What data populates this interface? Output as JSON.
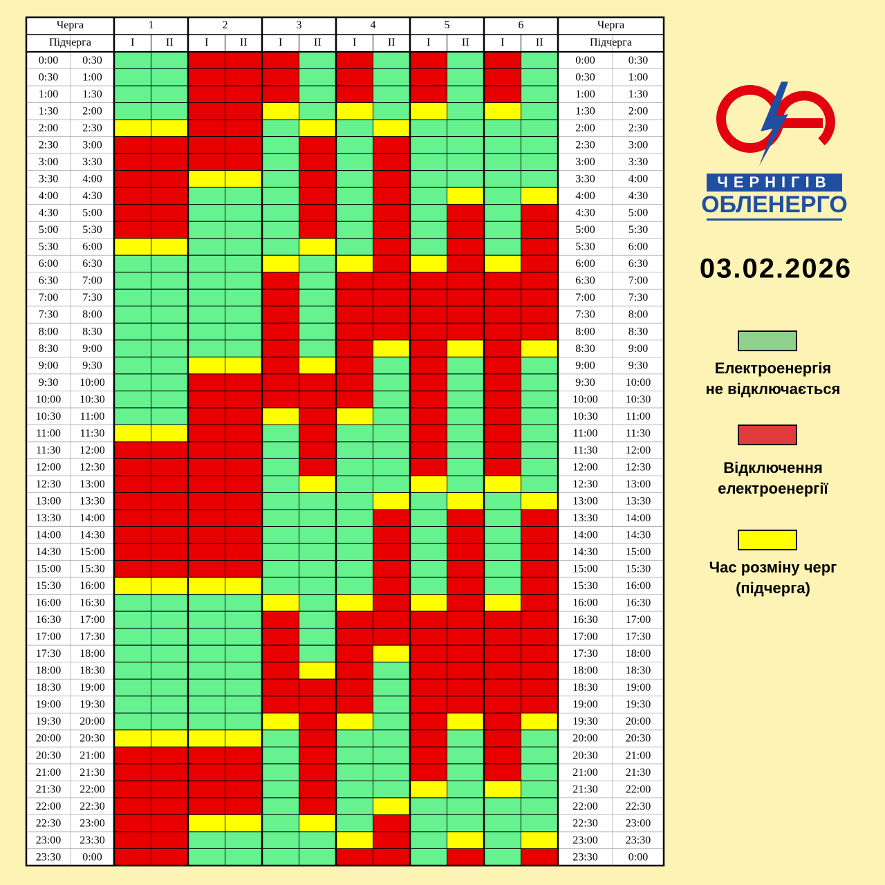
{
  "header": {
    "queue_label": "Черга",
    "subqueue_label": "Підчерга",
    "groups": [
      "1",
      "2",
      "3",
      "4",
      "5",
      "6"
    ],
    "subgroups": [
      "I",
      "II"
    ]
  },
  "states": {
    "G": "#66f28f",
    "R": "#e80000",
    "Y": "#ffff00"
  },
  "rows": [
    {
      "from": "0:00",
      "to": "0:30",
      "cells": "GGRRRGRGRGRG"
    },
    {
      "from": "0:30",
      "to": "1:00",
      "cells": "GGRRRGRGRGRG"
    },
    {
      "from": "1:00",
      "to": "1:30",
      "cells": "GGRRRGRGRGRG"
    },
    {
      "from": "1:30",
      "to": "2:00",
      "cells": "GGRRYGYGYGYG"
    },
    {
      "from": "2:00",
      "to": "2:30",
      "cells": "YYRRGYGYGGGG"
    },
    {
      "from": "2:30",
      "to": "3:00",
      "cells": "RRRRGRGRGGGG"
    },
    {
      "from": "3:00",
      "to": "3:30",
      "cells": "RRRRGRGRGGGG"
    },
    {
      "from": "3:30",
      "to": "4:00",
      "cells": "RRYYGRGRGGGG"
    },
    {
      "from": "4:00",
      "to": "4:30",
      "cells": "RRGGGRGRGYGY"
    },
    {
      "from": "4:30",
      "to": "5:00",
      "cells": "RRGGGRGRGRGR"
    },
    {
      "from": "5:00",
      "to": "5:30",
      "cells": "RRGGGRGRGRGR"
    },
    {
      "from": "5:30",
      "to": "6:00",
      "cells": "YYGGGYGRGRGR"
    },
    {
      "from": "6:00",
      "to": "6:30",
      "cells": "GGGGYGYRYRYR"
    },
    {
      "from": "6:30",
      "to": "7:00",
      "cells": "GGGGRGRRRRRR"
    },
    {
      "from": "7:00",
      "to": "7:30",
      "cells": "GGGGRGRRRRRR"
    },
    {
      "from": "7:30",
      "to": "8:00",
      "cells": "GGGGRGRRRRRR"
    },
    {
      "from": "8:00",
      "to": "8:30",
      "cells": "GGGGRGRRRRRR"
    },
    {
      "from": "8:30",
      "to": "9:00",
      "cells": "GGGGRGRYRYRY"
    },
    {
      "from": "9:00",
      "to": "9:30",
      "cells": "GGYYRYRGRGRG"
    },
    {
      "from": "9:30",
      "to": "10:00",
      "cells": "GGRRRRRGRGRG"
    },
    {
      "from": "10:00",
      "to": "10:30",
      "cells": "GGRRRRRGRGRG"
    },
    {
      "from": "10:30",
      "to": "11:00",
      "cells": "GGRRYRYGRGRG"
    },
    {
      "from": "11:00",
      "to": "11:30",
      "cells": "YYRRGRGGRGRG"
    },
    {
      "from": "11:30",
      "to": "12:00",
      "cells": "RRRRGRGGRGRG"
    },
    {
      "from": "12:00",
      "to": "12:30",
      "cells": "RRRRGRGGRGRG"
    },
    {
      "from": "12:30",
      "to": "13:00",
      "cells": "RRRRGYGGYGYG"
    },
    {
      "from": "13:00",
      "to": "13:30",
      "cells": "RRRRGGGYGYGY"
    },
    {
      "from": "13:30",
      "to": "14:00",
      "cells": "RRRRGGGRGRGR"
    },
    {
      "from": "14:00",
      "to": "14:30",
      "cells": "RRRRGGGRGRGR"
    },
    {
      "from": "14:30",
      "to": "15:00",
      "cells": "RRRRGGGRGRGR"
    },
    {
      "from": "15:00",
      "to": "15:30",
      "cells": "RRRRGGGRGRGR"
    },
    {
      "from": "15:30",
      "to": "16:00",
      "cells": "YYYYGGGRGRGR"
    },
    {
      "from": "16:00",
      "to": "16:30",
      "cells": "GGGGYGYRYRYR"
    },
    {
      "from": "16:30",
      "to": "17:00",
      "cells": "GGGGRGRRRRRR"
    },
    {
      "from": "17:00",
      "to": "17:30",
      "cells": "GGGGRGRRRRRR"
    },
    {
      "from": "17:30",
      "to": "18:00",
      "cells": "GGGGRGRYRRRR"
    },
    {
      "from": "18:00",
      "to": "18:30",
      "cells": "GGGGRYRGRRRR"
    },
    {
      "from": "18:30",
      "to": "19:00",
      "cells": "GGGGRRRGRRRR"
    },
    {
      "from": "19:00",
      "to": "19:30",
      "cells": "GGGGRRRGRRRR"
    },
    {
      "from": "19:30",
      "to": "20:00",
      "cells": "GGGGYRYGRYRY"
    },
    {
      "from": "20:00",
      "to": "20:30",
      "cells": "YYYYGRGGRGRG"
    },
    {
      "from": "20:30",
      "to": "21:00",
      "cells": "RRRRGRGGRGRG"
    },
    {
      "from": "21:00",
      "to": "21:30",
      "cells": "RRRRGRGGRGRG"
    },
    {
      "from": "21:30",
      "to": "22:00",
      "cells": "RRRRGRGGYGYG"
    },
    {
      "from": "22:00",
      "to": "22:30",
      "cells": "RRRRGRGYGGGG"
    },
    {
      "from": "22:30",
      "to": "23:00",
      "cells": "RRYYGYGRGGGG"
    },
    {
      "from": "23:00",
      "to": "23:30",
      "cells": "RRGGGGYRGYGY"
    },
    {
      "from": "23:30",
      "to": "0:00",
      "cells": "RRGGGGRRGRGR"
    }
  ],
  "logo": {
    "line1": "ЧЕРНІГІВ",
    "line2": "ОБЛЕНЕРГО"
  },
  "date": "03.02.2026",
  "legend": [
    {
      "color": "#8fd18a",
      "lines": [
        "Електроенергія",
        "не відключається"
      ]
    },
    {
      "color": "#e23a3a",
      "lines": [
        "Відключення",
        "електроенергії"
      ]
    },
    {
      "color": "#ffff00",
      "lines": [
        "Час розміну черг",
        "(підчерга)"
      ]
    }
  ]
}
